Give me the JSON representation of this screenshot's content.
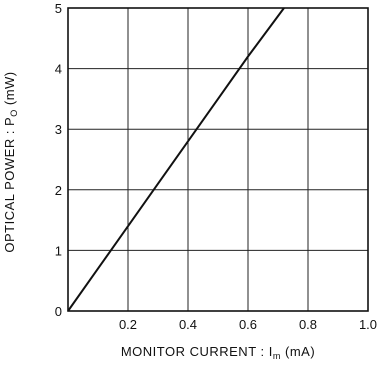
{
  "chart_data": {
    "type": "line",
    "xlabel": "MONITOR CURRENT : I",
    "xlabel_sub": "m",
    "xlabel_unit": "(mA)",
    "ylabel": "OPTICAL POWER : P",
    "ylabel_sub": "O",
    "ylabel_unit": "(mW)",
    "xlim": [
      0,
      1.0
    ],
    "ylim": [
      0,
      5
    ],
    "x_ticks": [
      "0.2",
      "0.4",
      "0.6",
      "0.8",
      "1.0"
    ],
    "y_ticks": [
      "0",
      "1",
      "2",
      "3",
      "4",
      "5"
    ],
    "grid": true,
    "series": [
      {
        "x": [
          0,
          0.1,
          0.2,
          0.3,
          0.4,
          0.5,
          0.6,
          0.72
        ],
        "y": [
          0,
          0.7,
          1.4,
          2.1,
          2.8,
          3.5,
          4.2,
          5.0
        ]
      }
    ]
  }
}
